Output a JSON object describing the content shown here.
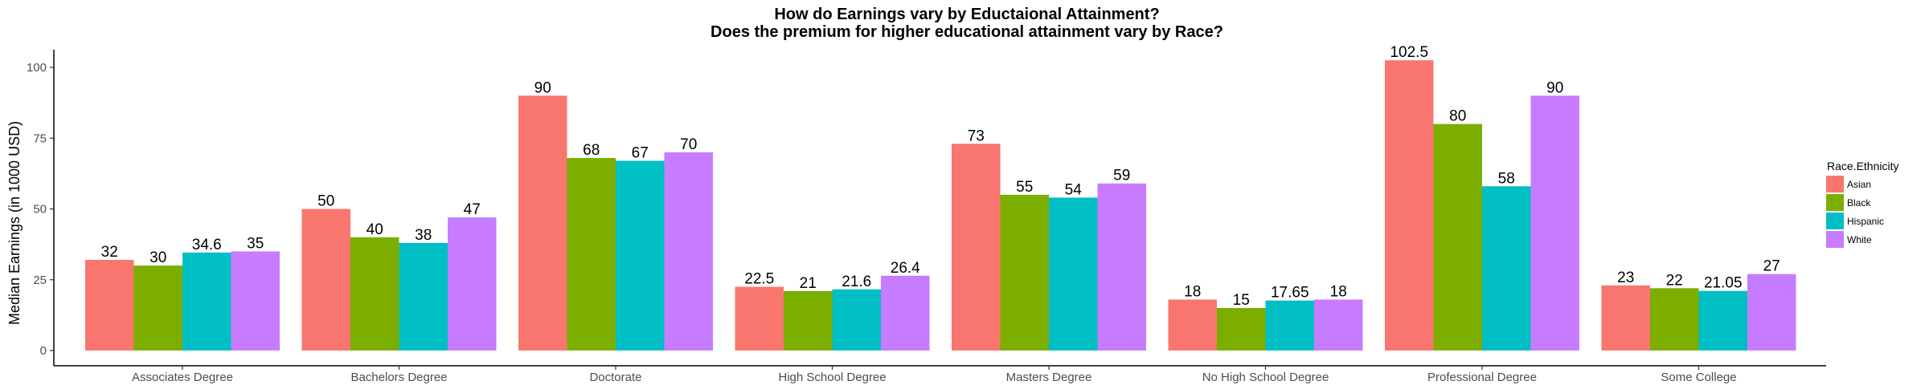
{
  "chart_data": {
    "type": "bar",
    "title": "How do Earnings vary by Eductaional Attainment?",
    "subtitle": "Does the premium for higher educational attainment vary by Race?",
    "xlabel": "",
    "ylabel": "Median Earnings (in 1000 USD)",
    "ylim": [
      0,
      105
    ],
    "yticks": [
      0,
      25,
      50,
      75,
      100
    ],
    "grid": false,
    "legend": {
      "title": "Race.Ethnicity",
      "placement": "right"
    },
    "categories": [
      "Associates Degree",
      "Bachelors Degree",
      "Doctorate",
      "High School Degree",
      "Masters Degree",
      "No High School Degree",
      "Professional Degree",
      "Some College"
    ],
    "series": [
      {
        "name": "Asian",
        "color": "#F8766D",
        "values": [
          32,
          50,
          90,
          22.5,
          73,
          18,
          102.5,
          23
        ],
        "labels": [
          "32",
          "50",
          "90",
          "22.5",
          "73",
          "18",
          "102.5",
          "23"
        ]
      },
      {
        "name": "Black",
        "color": "#7CAE00",
        "values": [
          30,
          40,
          68,
          21,
          55,
          15,
          80,
          22
        ],
        "labels": [
          "30",
          "40",
          "68",
          "21",
          "55",
          "15",
          "80",
          "22"
        ]
      },
      {
        "name": "Hispanic",
        "color": "#00BFC4",
        "values": [
          34.6,
          38,
          67,
          21.6,
          54,
          17.65,
          58,
          21.05
        ],
        "labels": [
          "34.6",
          "38",
          "67",
          "21.6",
          "54",
          "17.65",
          "58",
          "21.05"
        ]
      },
      {
        "name": "White",
        "color": "#C77CFF",
        "values": [
          35,
          47,
          70,
          26.4,
          59,
          18,
          90,
          27
        ],
        "labels": [
          "35",
          "47",
          "70",
          "26.4",
          "59",
          "18",
          "90",
          "27"
        ]
      }
    ]
  }
}
